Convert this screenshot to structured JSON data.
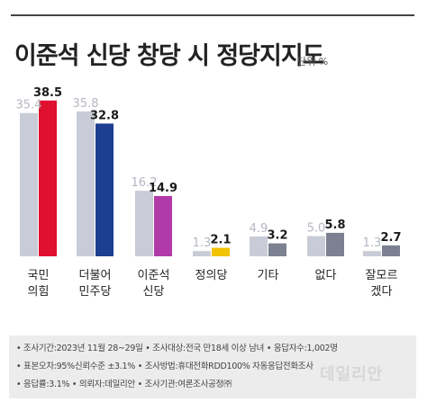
{
  "title": "이준석 신당 창당 시 정당지지도",
  "unit": "단위 %",
  "chart_data": {
    "type": "bar",
    "title": "이준석 신당 창당 시 정당지지도",
    "unit": "단위 %",
    "categories": [
      [
        "국민",
        "의힘"
      ],
      [
        "더불어",
        "민주당"
      ],
      [
        "이준석",
        "신당"
      ],
      [
        "정의당"
      ],
      [
        "기타"
      ],
      [
        "없다"
      ],
      [
        "잘모르",
        "겠다"
      ]
    ],
    "series": [
      {
        "values": [
          35.4,
          35.8,
          16.2,
          1.3,
          4.9,
          5.0,
          1.3
        ]
      },
      {
        "values": [
          38.5,
          32.8,
          14.9,
          2.1,
          3.2,
          5.8,
          2.7
        ]
      }
    ],
    "value_labels": [
      [
        "35.4",
        "35.8",
        "16.2",
        "1.3",
        "4.9",
        "5.0",
        "1.3"
      ],
      [
        "38.5",
        "32.8",
        "14.9",
        "2.1",
        "3.2",
        "5.8",
        "2.7"
      ]
    ],
    "ylim": [
      0,
      40
    ],
    "grid": false,
    "legend": "none",
    "colors": {
      "first_bar": "#c9ccd6",
      "first_label": "#b5b8c2",
      "second_default": "#7b8190",
      "second_bars": [
        "#e0102f",
        "#1d3f91",
        "#b23aa8",
        "#f2c300",
        "#7b8190",
        "#7b8190",
        "#7b8190"
      ],
      "second_label": "#1a1a1a"
    }
  },
  "footer": {
    "lines": [
      "• 조사기간:2023년 11월 28~29일   • 조사대상:전국 만18세 이상 남녀   • 응답자수:1,002명",
      "• 표본오차:95%신뢰수준 ±3.1%   • 조사방법:휴대전화RDD100% 자동응답전화조사",
      "• 응답률:3.1%   • 의뢰자:데일리안   • 조사기관:여론조사공정㈜"
    ],
    "watermark": "데일리안"
  }
}
